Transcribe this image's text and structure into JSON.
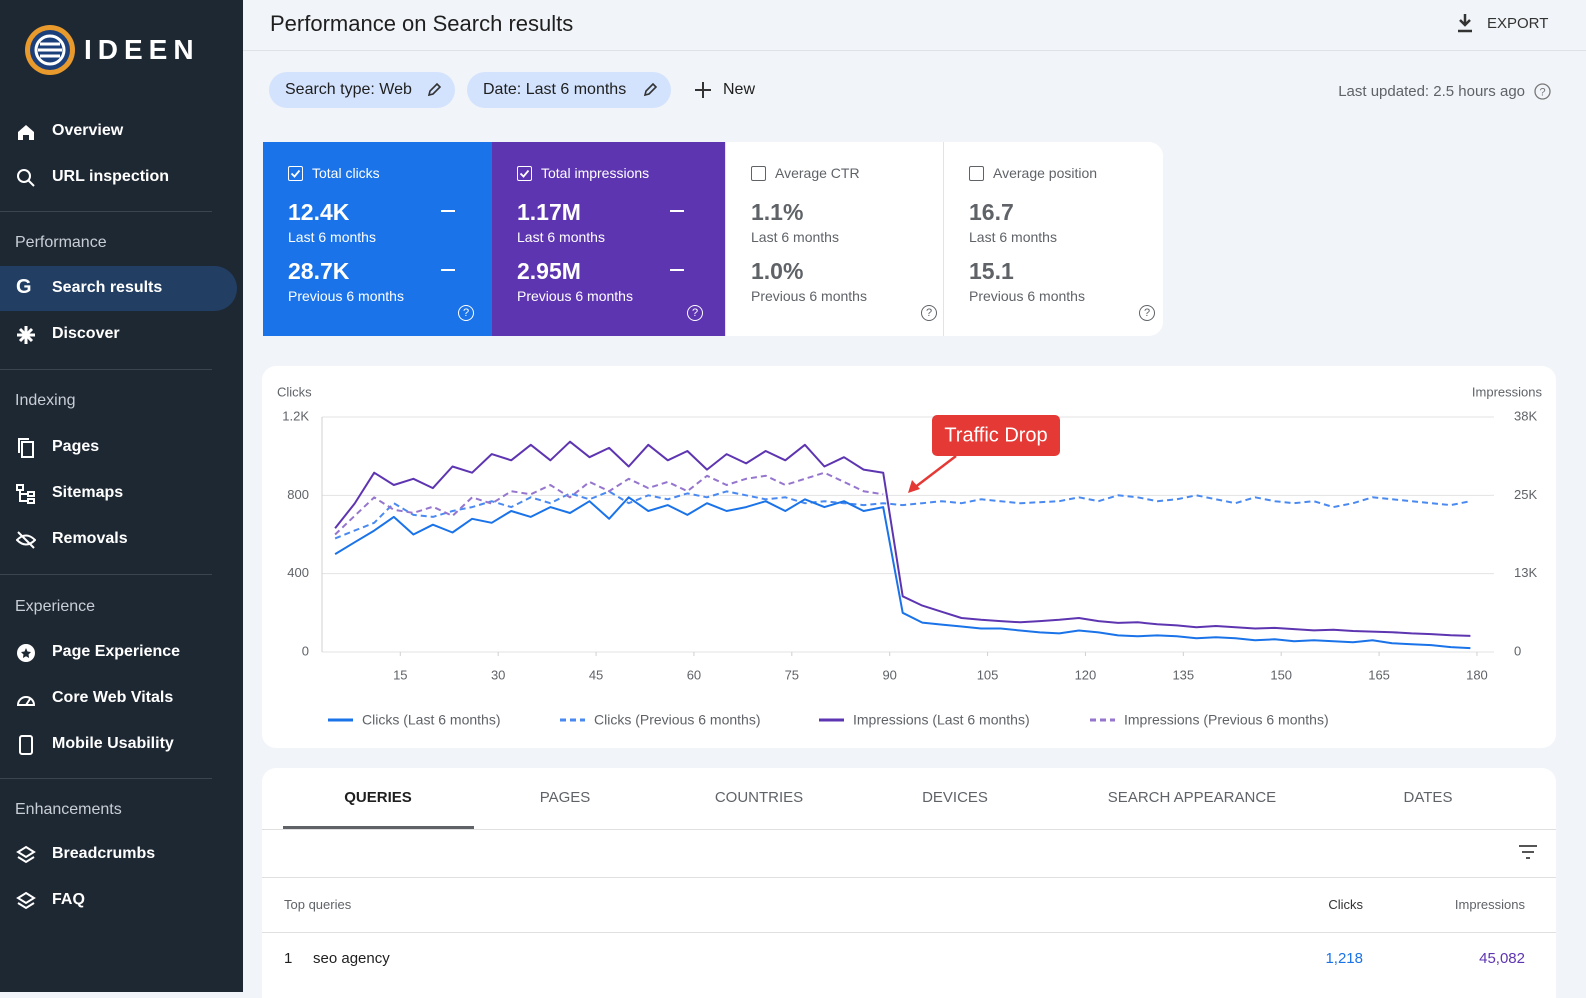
{
  "sidebar": {
    "brand": "IDEEN",
    "items": [
      "Overview",
      "URL inspection"
    ],
    "sections": [
      {
        "title": "Performance",
        "items": [
          "Search results",
          "Discover"
        ]
      },
      {
        "title": "Indexing",
        "items": [
          "Pages",
          "Sitemaps",
          "Removals"
        ]
      },
      {
        "title": "Experience",
        "items": [
          "Page Experience",
          "Core Web Vitals",
          "Mobile Usability"
        ]
      },
      {
        "title": "Enhancements",
        "items": [
          "Breadcrumbs",
          "FAQ"
        ]
      }
    ]
  },
  "header": {
    "title": "Performance on Search results",
    "export": "EXPORT"
  },
  "filters": [
    "Search type: Web",
    "Date: Last 6 months",
    "New"
  ],
  "last_updated": "Last updated: 2.5 hours ago",
  "metrics": [
    {
      "label": "Total clicks",
      "value": "12.4K",
      "period": "Last 6 months",
      "prev_value": "28.7K",
      "prev_period": "Previous 6 months"
    },
    {
      "label": "Total impressions",
      "value": "1.17M",
      "period": "Last 6 months",
      "prev_value": "2.95M",
      "prev_period": "Previous 6 months"
    },
    {
      "label": "Average CTR",
      "value": "1.1%",
      "period": "Last 6 months",
      "prev_value": "1.0%",
      "prev_period": "Previous 6 months"
    },
    {
      "label": "Average position",
      "value": "16.7",
      "period": "Last 6 months",
      "prev_value": "15.1",
      "prev_period": "Previous 6 months"
    }
  ],
  "chart_data": {
    "type": "line",
    "ylabel": "Clicks",
    "y2label": "Impressions",
    "annotation": "Traffic Drop",
    "grid": true,
    "xlim": [
      3,
      182
    ],
    "xticks": [
      15,
      30,
      45,
      60,
      75,
      90,
      105,
      120,
      135,
      150,
      165,
      180
    ],
    "ylim": [
      0,
      1200
    ],
    "yticks": [
      0,
      400,
      800,
      {
        "value": 1200,
        "label": "1.2K"
      }
    ],
    "y2lim": [
      0,
      38000
    ],
    "y2ticks": [
      0,
      {
        "value": 12667,
        "label": "13K"
      },
      {
        "value": 25333,
        "label": "25K"
      },
      {
        "value": 38000,
        "label": "38K"
      }
    ],
    "x": [
      5,
      8,
      11,
      14,
      17,
      20,
      23,
      26,
      29,
      32,
      35,
      38,
      41,
      44,
      47,
      50,
      53,
      56,
      59,
      62,
      65,
      68,
      71,
      74,
      77,
      80,
      83,
      86,
      89,
      92,
      95,
      98,
      101,
      104,
      107,
      110,
      113,
      116,
      119,
      122,
      125,
      128,
      131,
      134,
      137,
      140,
      143,
      146,
      149,
      152,
      155,
      158,
      161,
      164,
      167,
      170,
      173,
      176,
      179
    ],
    "series": [
      {
        "name": "Clicks (Last 6 months)",
        "color": "#1a73e8",
        "style": "solid",
        "values": [
          500,
          560,
          620,
          690,
          600,
          650,
          610,
          680,
          660,
          720,
          690,
          740,
          710,
          770,
          680,
          790,
          720,
          750,
          700,
          760,
          720,
          740,
          770,
          720,
          780,
          740,
          770,
          720,
          740,
          200,
          150,
          140,
          130,
          120,
          120,
          110,
          100,
          95,
          110,
          100,
          85,
          80,
          85,
          80,
          70,
          75,
          70,
          60,
          65,
          55,
          60,
          55,
          50,
          60,
          45,
          40,
          35,
          25,
          20
        ]
      },
      {
        "name": "Clicks (Previous 6 months)",
        "color": "#4a8af0",
        "style": "dashed",
        "values": [
          580,
          620,
          660,
          760,
          700,
          690,
          720,
          740,
          770,
          740,
          790,
          760,
          810,
          780,
          820,
          760,
          800,
          780,
          810,
          790,
          820,
          800,
          780,
          790,
          760,
          770,
          760,
          750,
          760,
          750,
          760,
          770,
          760,
          780,
          770,
          760,
          765,
          770,
          790,
          770,
          800,
          790,
          770,
          780,
          800,
          780,
          760,
          790,
          770,
          760,
          770,
          740,
          760,
          790,
          780,
          770,
          760,
          750,
          770
        ]
      },
      {
        "name": "Impressions (Last 6 months)",
        "color": "#5e35b1",
        "style": "solid",
        "axis": "y2",
        "values": [
          20000,
          24000,
          29000,
          27000,
          28000,
          26500,
          30000,
          29000,
          32000,
          31000,
          33500,
          31000,
          34000,
          31500,
          33000,
          30000,
          33500,
          31000,
          32500,
          29500,
          32000,
          30500,
          32500,
          31000,
          33500,
          30000,
          31500,
          29500,
          29000,
          9000,
          7500,
          6500,
          5500,
          5200,
          5000,
          4800,
          5000,
          5200,
          5500,
          5000,
          4700,
          4800,
          4500,
          4300,
          4000,
          4200,
          4000,
          3800,
          3900,
          3700,
          3500,
          3600,
          3400,
          3300,
          3200,
          3000,
          2900,
          2700,
          2600
        ]
      },
      {
        "name": "Impressions (Previous 6 months)",
        "color": "#9575cd",
        "style": "dashed",
        "axis": "y2",
        "values": [
          19000,
          22000,
          25000,
          23000,
          22500,
          23500,
          22000,
          25000,
          24000,
          26000,
          25500,
          27000,
          25000,
          27500,
          26000,
          28000,
          26500,
          27500,
          26000,
          28500,
          27000,
          28000,
          28500,
          27000,
          28000,
          29000,
          27500,
          26000,
          25500,
          null,
          null,
          null,
          null,
          null,
          null,
          null,
          null,
          null,
          null,
          null,
          null,
          null,
          null,
          null,
          null,
          null,
          null,
          null,
          null,
          null,
          null,
          null,
          null,
          null,
          null,
          null,
          null,
          null,
          null
        ]
      }
    ]
  },
  "tabs": [
    "QUERIES",
    "PAGES",
    "COUNTRIES",
    "DEVICES",
    "SEARCH APPEARANCE",
    "DATES"
  ],
  "table": {
    "headers": [
      "Top queries",
      "Clicks",
      "Impressions"
    ],
    "rows": [
      [
        "1",
        "seo agency",
        "1,218",
        "45,082"
      ]
    ]
  }
}
